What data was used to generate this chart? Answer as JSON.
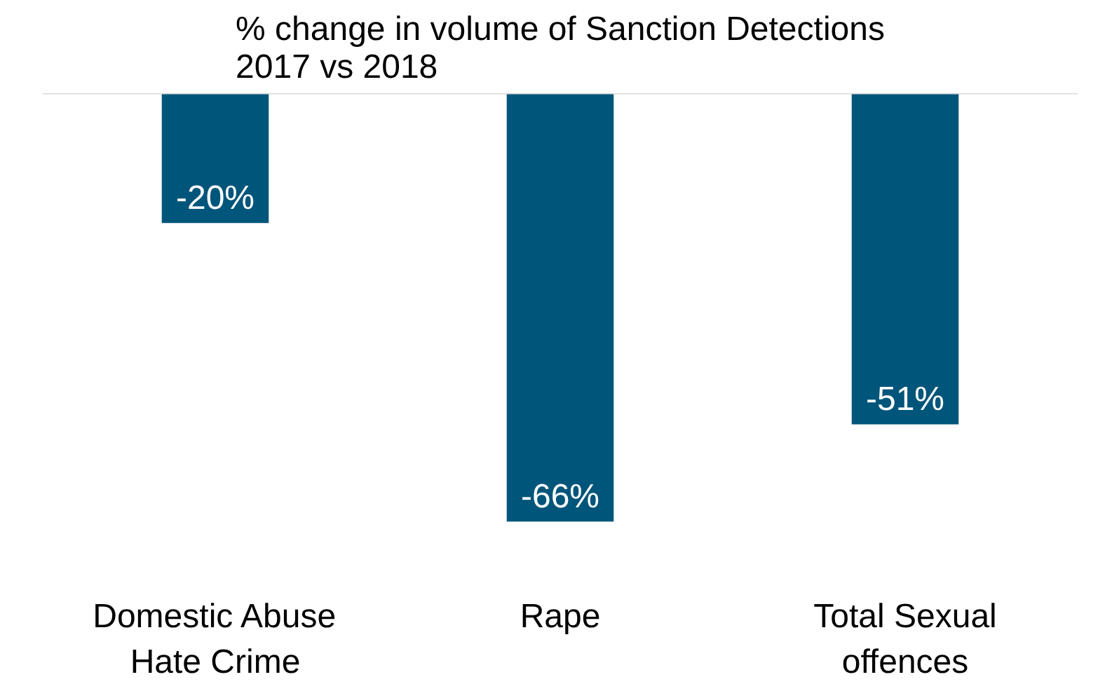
{
  "chart_data": {
    "type": "bar",
    "title": "% change in volume of Sanction Detections 2017 vs 2018",
    "categories": [
      "Domestic Abuse Hate Crime",
      "Rape",
      "Total Sexual offences"
    ],
    "values": [
      -20,
      -66,
      -51
    ],
    "value_labels": [
      "-20%",
      "-66%",
      "-51%"
    ],
    "color": "#00557a"
  }
}
